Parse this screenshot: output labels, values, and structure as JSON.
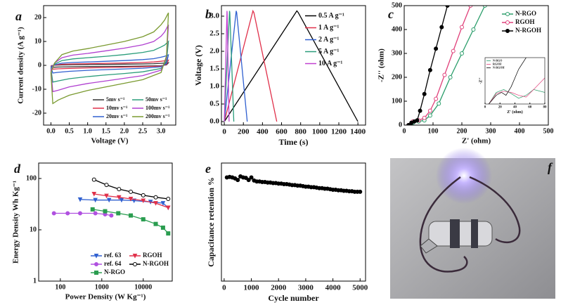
{
  "chart_data": [
    {
      "type": "line",
      "panel": "a",
      "xlabel": "Voltage (V)",
      "ylabel": "Current density (A g⁻¹)",
      "xlim": [
        -0.2,
        3.4
      ],
      "ylim": [
        -25,
        25
      ],
      "xticks": [
        {
          "value": 0,
          "label": "0.0"
        },
        0.5,
        {
          "value": 1,
          "label": "1.0"
        },
        1.5,
        {
          "value": 2,
          "label": "2.0"
        },
        2.5,
        {
          "value": 3,
          "label": "3.0"
        }
      ],
      "yticks": [
        -20,
        -10,
        0,
        10,
        20
      ],
      "legend": "lower right",
      "legend_columns": 2,
      "x": [
        0,
        0.1,
        0.3,
        0.6,
        1.0,
        1.5,
        2.0,
        2.5,
        2.8,
        3.0,
        3.1,
        3.2,
        3.15,
        3.0,
        2.5,
        2.0,
        1.5,
        1.0,
        0.5,
        0.2,
        0.05,
        0
      ],
      "series": [
        {
          "name": "5mv s⁻¹",
          "color": "#333333",
          "values": [
            -0.15,
            0.05,
            0.2,
            0.3,
            0.35,
            0.4,
            0.5,
            0.6,
            0.7,
            0.85,
            0.95,
            1.1,
            0.2,
            -0.15,
            -0.3,
            -0.4,
            -0.45,
            -0.5,
            -0.6,
            -0.7,
            -0.8,
            -0.15
          ]
        },
        {
          "name": "10mv s⁻¹",
          "color": "#e0304a",
          "values": [
            -0.3,
            0.1,
            0.45,
            0.6,
            0.7,
            0.85,
            1,
            1.2,
            1.4,
            1.7,
            1.9,
            2.2,
            0.4,
            -0.3,
            -0.6,
            -0.75,
            -0.9,
            -1.05,
            -1.25,
            -1.45,
            -1.6,
            -0.3
          ]
        },
        {
          "name": "20mv s⁻¹",
          "color": "#3060d0",
          "values": [
            -0.6,
            0.2,
            0.9,
            1.2,
            1.4,
            1.7,
            2,
            2.4,
            2.8,
            3.4,
            3.8,
            4.4,
            0.8,
            -0.6,
            -1.2,
            -1.5,
            -1.8,
            -2.1,
            -2.5,
            -2.9,
            -3.2,
            -0.6
          ]
        },
        {
          "name": "50mv s⁻¹",
          "color": "#2a9d7a",
          "values": [
            -1.3,
            0.5,
            2,
            2.7,
            3.2,
            3.8,
            4.5,
            5.4,
            6.3,
            7.7,
            8.5,
            10,
            1.8,
            -1.3,
            -2.7,
            -3.4,
            -4,
            -4.7,
            -5.6,
            -6.5,
            -7,
            -1.3
          ]
        },
        {
          "name": "100mv s⁻¹",
          "color": "#b040d0",
          "values": [
            -2,
            1,
            3.2,
            4.3,
            5,
            6.1,
            7.2,
            8.6,
            10,
            12.2,
            14,
            17,
            3,
            -2,
            -4.3,
            -5.4,
            -6.5,
            -7.6,
            -9,
            -10.4,
            -11,
            -2
          ]
        },
        {
          "name": "200mv s⁻¹",
          "color": "#7a9a30",
          "values": [
            -3,
            1,
            4.5,
            6,
            7,
            8.5,
            10,
            12,
            14,
            17,
            19,
            22,
            4,
            -3,
            -6,
            -7.5,
            -9,
            -10.5,
            -12.5,
            -14.5,
            -16,
            -3
          ]
        }
      ]
    },
    {
      "type": "line",
      "panel": "b",
      "xlabel": "Time (s)",
      "ylabel": "Voltage (V)",
      "xlim": [
        -30,
        1480
      ],
      "ylim": [
        -0.1,
        3.3
      ],
      "xticks": [
        0,
        200,
        400,
        600,
        800,
        1000,
        1200,
        1400
      ],
      "yticks": [
        {
          "value": 0,
          "label": "0.0"
        },
        0.5,
        {
          "value": 1,
          "label": "1.0"
        },
        1.5,
        {
          "value": 2,
          "label": "2.0"
        },
        2.5,
        {
          "value": 3,
          "label": "3.0"
        }
      ],
      "legend": "upper right",
      "series": [
        {
          "name": "0.5 A g⁻¹",
          "color": "#000000",
          "x": [
            0,
            760,
            775,
            1400
          ],
          "values": [
            0,
            3.15,
            3.1,
            0
          ]
        },
        {
          "name": "1 A g⁻¹",
          "color": "#e0304a",
          "x": [
            0,
            300,
            310,
            550
          ],
          "values": [
            0,
            3.15,
            3.1,
            0
          ]
        },
        {
          "name": "2 A g⁻¹",
          "color": "#3060d0",
          "x": [
            0,
            125,
            130,
            240
          ],
          "values": [
            0,
            3.15,
            3.1,
            0
          ]
        },
        {
          "name": "5 A g⁻¹",
          "color": "#2a9d7a",
          "x": [
            0,
            55,
            58,
            100
          ],
          "values": [
            0,
            3.15,
            3.1,
            0
          ]
        },
        {
          "name": "10 A g⁻¹",
          "color": "#c040d0",
          "x": [
            0,
            28,
            30,
            50
          ],
          "values": [
            0,
            3.15,
            3.1,
            0
          ]
        }
      ]
    },
    {
      "type": "line",
      "panel": "c",
      "xlabel": "Z' (ohm)",
      "ylabel": "-Z'' (ohm)",
      "xlim": [
        0,
        500
      ],
      "ylim": [
        0,
        500
      ],
      "xticks": [
        0,
        100,
        200,
        300,
        400,
        500
      ],
      "yticks": [
        0,
        100,
        200,
        300,
        400,
        500
      ],
      "legend": "upper right",
      "series": [
        {
          "name": "N-RGO",
          "color": "#2a9d6a",
          "marker": "circle",
          "hollow": true,
          "x": [
            15,
            30,
            50,
            70,
            90,
            120,
            160,
            200,
            240,
            280
          ],
          "values": [
            0,
            10,
            15,
            20,
            40,
            90,
            200,
            300,
            400,
            500
          ]
        },
        {
          "name": "RGOH",
          "color": "#e0407a",
          "marker": "circle",
          "hollow": true,
          "x": [
            15,
            30,
            50,
            70,
            90,
            110,
            140,
            170,
            200,
            230
          ],
          "values": [
            0,
            15,
            20,
            30,
            60,
            110,
            210,
            310,
            410,
            500
          ]
        },
        {
          "name": "N-RGOH",
          "color": "#000000",
          "marker": "circle",
          "x": [
            15,
            25,
            35,
            45,
            55,
            70,
            90,
            110,
            130,
            150
          ],
          "values": [
            0,
            10,
            15,
            20,
            60,
            130,
            230,
            320,
            410,
            500
          ]
        }
      ]
    },
    {
      "type": "line",
      "xlabel": "Z' (ohm)",
      "ylabel": "-Z''",
      "xlim": [
        0,
        80
      ],
      "ylim": [
        0,
        80
      ],
      "xticks": [
        0,
        20,
        40,
        60,
        80
      ],
      "legend": "upper left",
      "series": [
        {
          "name": "N-RGO",
          "color": "#2a9d6a",
          "x": [
            5,
            15,
            25,
            35,
            45,
            55,
            65,
            80
          ],
          "values": [
            0,
            20,
            25,
            18,
            10,
            15,
            25,
            20
          ]
        },
        {
          "name": "RGOH",
          "color": "#e0407a",
          "x": [
            5,
            15,
            25,
            35,
            45,
            55,
            65,
            80
          ],
          "values": [
            0,
            18,
            22,
            20,
            15,
            12,
            25,
            45
          ]
        },
        {
          "name": "N-RGOH",
          "color": "#000000",
          "x": [
            5,
            15,
            22,
            28,
            35,
            45,
            55
          ],
          "values": [
            0,
            15,
            20,
            15,
            30,
            60,
            80
          ]
        }
      ]
    },
    {
      "type": "line",
      "panel": "d",
      "xlabel": "Power Density (W Kg⁻¹)",
      "ylabel": "Energy Density Wh Kg⁻¹",
      "xscale": "log",
      "yscale": "log",
      "xlim": [
        30,
        50000
      ],
      "ylim": [
        1,
        200
      ],
      "xticks": [
        100,
        1000,
        10000
      ],
      "yticks": [
        1,
        10,
        100
      ],
      "legend": "lower right",
      "legend_columns": 2,
      "series": [
        {
          "name": "ref. 63",
          "color": "#3060d0",
          "marker": "triangle",
          "x": [
            300,
            700,
            1500,
            3000,
            6000,
            15000,
            30000,
            40000
          ],
          "values": [
            39,
            38,
            38,
            38,
            37,
            35,
            33,
            27
          ]
        },
        {
          "name": "ref. 64",
          "color": "#b050e0",
          "marker": "circle",
          "x": [
            70,
            150,
            300,
            700,
            1200,
            1700
          ],
          "values": [
            21,
            21,
            21,
            21,
            20,
            19
          ]
        },
        {
          "name": "N-RGO",
          "color": "#2a9d50",
          "marker": "square",
          "x": [
            600,
            1200,
            2500,
            5000,
            10000,
            20000,
            30000,
            40000
          ],
          "values": [
            25,
            23,
            21,
            19,
            16,
            13,
            11,
            8.5
          ]
        },
        {
          "name": "RGOH",
          "color": "#e0304a",
          "marker": "triangle",
          "x": [
            650,
            1300,
            2600,
            5000,
            10000,
            20000,
            40000
          ],
          "values": [
            50,
            46,
            43,
            40,
            37,
            33,
            27
          ]
        },
        {
          "name": "N-RGOH",
          "color": "#000000",
          "marker": "circle",
          "hollow": true,
          "x": [
            650,
            1300,
            2600,
            5000,
            10000,
            20000,
            40000
          ],
          "values": [
            95,
            75,
            62,
            55,
            47,
            43,
            40
          ]
        }
      ]
    },
    {
      "type": "line",
      "panel": "e",
      "xlabel": "Cycle number",
      "ylabel": "Capacitance retention %",
      "xlim": [
        -100,
        5200
      ],
      "ylim": [
        0,
        115
      ],
      "xticks": [
        0,
        1000,
        2000,
        3000,
        4000,
        5000
      ],
      "series": [
        {
          "color": "#000000",
          "marker": "circle",
          "x": [
            100,
            200,
            300,
            400,
            500,
            600,
            700,
            800,
            900,
            1000,
            1100,
            1200,
            1300,
            1400,
            1500,
            1600,
            1700,
            1800,
            1900,
            2000,
            2100,
            2200,
            2300,
            2400,
            2500,
            2600,
            2700,
            2800,
            2900,
            3000,
            3100,
            3200,
            3300,
            3400,
            3500,
            3600,
            3700,
            3800,
            3900,
            4000,
            4100,
            4200,
            4300,
            4400,
            4500,
            4600,
            4700,
            4800,
            4900,
            5000
          ],
          "values": [
            101,
            101.5,
            101,
            100,
            98.5,
            102,
            101,
            100.5,
            98.5,
            101,
            98,
            97,
            97,
            96.5,
            96.5,
            96,
            96,
            95.5,
            95.5,
            95,
            95,
            94.5,
            94.5,
            94,
            93.5,
            93.5,
            93,
            93,
            92.5,
            92,
            92,
            91.5,
            91.5,
            91,
            90.5,
            90.5,
            90,
            90,
            89.5,
            89,
            89,
            88.5,
            88.5,
            88,
            88,
            87.5,
            87.5,
            87,
            87,
            87
          ]
        }
      ]
    }
  ],
  "photo": {
    "panel": "f"
  }
}
